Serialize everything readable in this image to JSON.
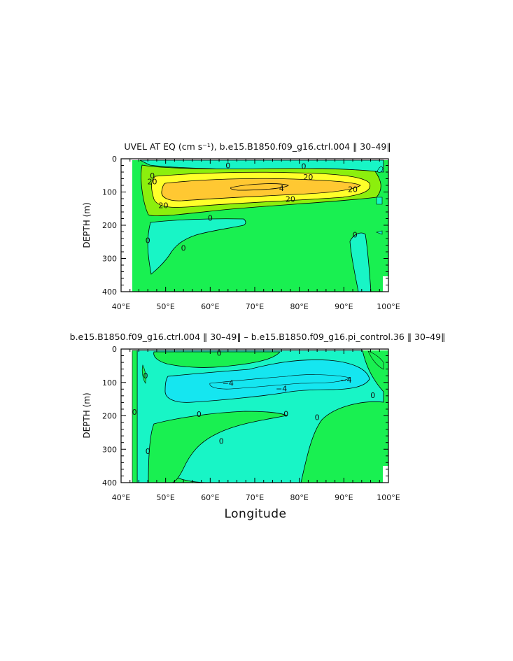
{
  "figure": {
    "xlabel": "Longitude"
  },
  "colors": {
    "green": "#19f051",
    "cyan": "#18f5c6",
    "cyan_deep": "#15e6f0",
    "lime": "#8cef0d",
    "yellow": "#ffff2a",
    "orange": "#ffc832",
    "frame": "#000000"
  },
  "chart_data": [
    {
      "type": "contour",
      "title": "UVEL AT EQ (cm s⁻¹), b.e15.B1850.f09_g16.ctrl.004 ‖ 30–49‖",
      "ylabel": "DEPTH (m)",
      "xlim": [
        40,
        100
      ],
      "ylim": [
        400,
        0
      ],
      "xticks": [
        "40°E",
        "50°E",
        "60°E",
        "70°E",
        "80°E",
        "90°E",
        "100°E"
      ],
      "yticks": [
        "0",
        "100",
        "200",
        "300",
        "400"
      ],
      "contour_labels": [
        {
          "text": "0",
          "x": 64,
          "y": 20
        },
        {
          "text": "0",
          "x": 81,
          "y": 22
        },
        {
          "text": "0",
          "x": 47,
          "y": 50
        },
        {
          "text": "20",
          "x": 47,
          "y": 68
        },
        {
          "text": "20",
          "x": 82,
          "y": 55
        },
        {
          "text": "20",
          "x": 92,
          "y": 92
        },
        {
          "text": "20",
          "x": 49.5,
          "y": 140
        },
        {
          "text": "20",
          "x": 78,
          "y": 121
        },
        {
          "text": "4",
          "x": 76,
          "y": 88
        },
        {
          "text": "0",
          "x": 60,
          "y": 178
        },
        {
          "text": "0",
          "x": 46,
          "y": 245
        },
        {
          "text": "0",
          "x": 54,
          "y": 268
        },
        {
          "text": "0",
          "x": 92.5,
          "y": 228
        }
      ]
    },
    {
      "type": "contour",
      "title": "b.e15.B1850.f09_g16.ctrl.004 ‖ 30–49‖  –  b.e15.B1850.f09_g16.pi_control.36 ‖ 30–49‖",
      "ylabel": "DEPTH (m)",
      "xlim": [
        40,
        100
      ],
      "ylim": [
        400,
        0
      ],
      "xticks": [
        "40°E",
        "50°E",
        "60°E",
        "70°E",
        "80°E",
        "90°E",
        "100°E"
      ],
      "yticks": [
        "0",
        "100",
        "200",
        "300",
        "400"
      ],
      "contour_labels": [
        {
          "text": "0",
          "x": 62,
          "y": 12
        },
        {
          "text": "0",
          "x": 45.5,
          "y": 80
        },
        {
          "text": "−4",
          "x": 64,
          "y": 102
        },
        {
          "text": "−4",
          "x": 76,
          "y": 118
        },
        {
          "text": "−4",
          "x": 90.5,
          "y": 92
        },
        {
          "text": "0",
          "x": 96.5,
          "y": 138
        },
        {
          "text": "0",
          "x": 43,
          "y": 188
        },
        {
          "text": "0",
          "x": 57.5,
          "y": 195
        },
        {
          "text": "0",
          "x": 77,
          "y": 194
        },
        {
          "text": "0",
          "x": 84,
          "y": 204
        },
        {
          "text": "0",
          "x": 62.5,
          "y": 275
        },
        {
          "text": "0",
          "x": 46,
          "y": 306
        }
      ]
    }
  ]
}
